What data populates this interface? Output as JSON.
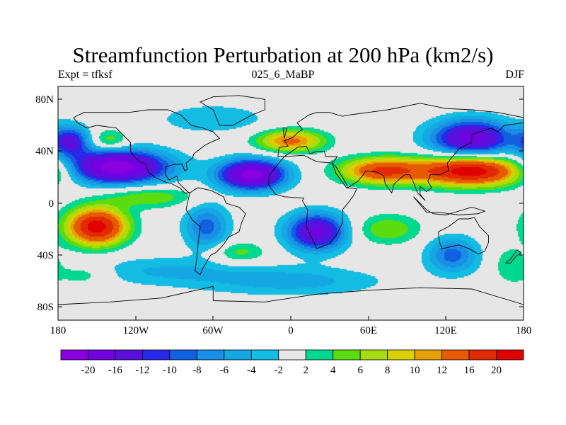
{
  "title": "Streamfunction Perturbation at 200 hPa (km2/s)",
  "subtitle": {
    "left": "Expt = tfksf",
    "center": "025_6_MaBP",
    "right": "DJF"
  },
  "axes": {
    "y_ticks": [
      "80N",
      "40N",
      "0",
      "40S",
      "80S"
    ],
    "x_ticks": [
      "180",
      "120W",
      "60W",
      "0",
      "60E",
      "120E",
      "180"
    ]
  },
  "colorbar": {
    "labels": [
      "-20",
      "-16",
      "-12",
      "-10",
      "-8",
      "-6",
      "-4",
      "-2",
      "2",
      "4",
      "6",
      "8",
      "10",
      "12",
      "16",
      "20"
    ],
    "colors": [
      "#8a00e0",
      "#7200e0",
      "#5a10dc",
      "#2828e8",
      "#1060e0",
      "#1a8ee6",
      "#15a6e4",
      "#12bce2",
      "#e6e6e6",
      "#00d890",
      "#5adc10",
      "#a6dc10",
      "#d8d000",
      "#e6a000",
      "#e65a00",
      "#e22a00",
      "#e00000"
    ]
  },
  "chart_data": {
    "type": "heatmap",
    "title": "Streamfunction Perturbation at 200 hPa (km2/s)",
    "x_range": [
      -180,
      180
    ],
    "y_range": [
      -90,
      90
    ],
    "blobs": [
      {
        "lon": -135,
        "lat": 28,
        "amp": -23,
        "slon": 28,
        "slat": 9
      },
      {
        "lon": -30,
        "lat": 22,
        "amp": -22,
        "slon": 18,
        "slat": 8
      },
      {
        "lon": 140,
        "lat": 50,
        "amp": -18,
        "slon": 22,
        "slat": 10
      },
      {
        "lon": 20,
        "lat": -22,
        "amp": -17,
        "slon": 16,
        "slat": 10
      },
      {
        "lon": -65,
        "lat": -18,
        "amp": -9,
        "slon": 12,
        "slat": 12
      },
      {
        "lon": 125,
        "lat": -40,
        "amp": -9,
        "slon": 14,
        "slat": 10
      },
      {
        "lon": -170,
        "lat": 48,
        "amp": -12,
        "slon": 10,
        "slat": 8
      },
      {
        "lon": 0,
        "lat": -60,
        "amp": -5,
        "slon": 50,
        "slat": 8
      },
      {
        "lon": -100,
        "lat": -52,
        "amp": -4,
        "slon": 45,
        "slat": 8
      },
      {
        "lon": -60,
        "lat": 65,
        "amp": -4,
        "slon": 30,
        "slat": 8
      },
      {
        "lon": 140,
        "lat": 25,
        "amp": 23,
        "slon": 30,
        "slat": 8
      },
      {
        "lon": 70,
        "lat": 25,
        "amp": 16,
        "slon": 22,
        "slat": 7
      },
      {
        "lon": -150,
        "lat": -18,
        "amp": 22,
        "slon": 16,
        "slat": 10
      },
      {
        "lon": 0,
        "lat": 48,
        "amp": 13,
        "slon": 18,
        "slat": 6
      },
      {
        "lon": -110,
        "lat": 5,
        "amp": 6,
        "slon": 25,
        "slat": 6
      },
      {
        "lon": -40,
        "lat": -38,
        "amp": 5,
        "slon": 15,
        "slat": 6
      },
      {
        "lon": 75,
        "lat": -20,
        "amp": 6,
        "slon": 18,
        "slat": 8
      },
      {
        "lon": -140,
        "lat": 48,
        "amp": 6,
        "slon": 10,
        "slat": 6
      },
      {
        "lon": -160,
        "lat": -55,
        "amp": 4,
        "slon": 15,
        "slat": 6
      },
      {
        "lon": 170,
        "lat": -48,
        "amp": 4,
        "slon": 10,
        "slat": 10
      }
    ],
    "coastlines": [
      [
        [
          -168,
          66
        ],
        [
          -160,
          70
        ],
        [
          -140,
          70
        ],
        [
          -125,
          70
        ],
        [
          -110,
          72
        ],
        [
          -95,
          72
        ],
        [
          -85,
          68
        ],
        [
          -80,
          63
        ],
        [
          -77,
          60
        ],
        [
          -68,
          58
        ],
        [
          -60,
          55
        ],
        [
          -55,
          50
        ],
        [
          -66,
          45
        ],
        [
          -70,
          42
        ],
        [
          -75,
          38
        ],
        [
          -76,
          35
        ],
        [
          -81,
          31
        ],
        [
          -80,
          26
        ],
        [
          -82,
          25
        ],
        [
          -84,
          30
        ],
        [
          -90,
          30
        ],
        [
          -97,
          28
        ],
        [
          -97,
          22
        ],
        [
          -94,
          18
        ],
        [
          -88,
          21
        ],
        [
          -87,
          16
        ],
        [
          -83,
          12
        ],
        [
          -80,
          9
        ],
        [
          -78,
          8
        ],
        [
          -82,
          8
        ],
        [
          -86,
          12
        ],
        [
          -92,
          15
        ],
        [
          -96,
          16
        ],
        [
          -105,
          20
        ],
        [
          -110,
          24
        ],
        [
          -112,
          30
        ],
        [
          -117,
          32
        ],
        [
          -121,
          36
        ],
        [
          -124,
          40
        ],
        [
          -124,
          47
        ],
        [
          -128,
          51
        ],
        [
          -135,
          58
        ],
        [
          -150,
          60
        ],
        [
          -158,
          58
        ],
        [
          -165,
          62
        ],
        [
          -168,
          66
        ]
      ],
      [
        [
          -78,
          8
        ],
        [
          -72,
          12
        ],
        [
          -62,
          10
        ],
        [
          -52,
          5
        ],
        [
          -50,
          0
        ],
        [
          -40,
          -3
        ],
        [
          -35,
          -8
        ],
        [
          -38,
          -15
        ],
        [
          -40,
          -22
        ],
        [
          -48,
          -26
        ],
        [
          -53,
          -33
        ],
        [
          -58,
          -38
        ],
        [
          -62,
          -40
        ],
        [
          -65,
          -45
        ],
        [
          -68,
          -50
        ],
        [
          -70,
          -55
        ],
        [
          -74,
          -52
        ],
        [
          -73,
          -45
        ],
        [
          -72,
          -35
        ],
        [
          -71,
          -25
        ],
        [
          -70,
          -18
        ],
        [
          -76,
          -13
        ],
        [
          -81,
          -5
        ],
        [
          -80,
          0
        ],
        [
          -78,
          8
        ]
      ],
      [
        [
          -55,
          60
        ],
        [
          -45,
          60
        ],
        [
          -30,
          68
        ],
        [
          -20,
          72
        ],
        [
          -20,
          80
        ],
        [
          -40,
          83
        ],
        [
          -60,
          82
        ],
        [
          -70,
          78
        ],
        [
          -60,
          72
        ],
        [
          -55,
          60
        ]
      ],
      [
        [
          -10,
          36
        ],
        [
          -9,
          43
        ],
        [
          -2,
          44
        ],
        [
          -5,
          48
        ],
        [
          2,
          51
        ],
        [
          5,
          54
        ],
        [
          9,
          57
        ],
        [
          5,
          62
        ],
        [
          14,
          68
        ],
        [
          20,
          70
        ],
        [
          30,
          70
        ],
        [
          40,
          67
        ],
        [
          45,
          68
        ],
        [
          60,
          70
        ],
        [
          75,
          72
        ],
        [
          100,
          77
        ],
        [
          120,
          73
        ],
        [
          140,
          72
        ],
        [
          160,
          70
        ],
        [
          170,
          68
        ],
        [
          180,
          66
        ],
        [
          180,
          62
        ],
        [
          165,
          60
        ],
        [
          160,
          55
        ],
        [
          155,
          58
        ],
        [
          140,
          53
        ],
        [
          140,
          47
        ],
        [
          130,
          42
        ],
        [
          126,
          37
        ],
        [
          121,
          31
        ],
        [
          122,
          25
        ],
        [
          115,
          22
        ],
        [
          108,
          22
        ],
        [
          106,
          17
        ],
        [
          109,
          12
        ],
        [
          105,
          9
        ],
        [
          100,
          13
        ],
        [
          100,
          7
        ],
        [
          104,
          2
        ],
        [
          98,
          8
        ],
        [
          95,
          16
        ],
        [
          92,
          22
        ],
        [
          88,
          22
        ],
        [
          80,
          15
        ],
        [
          78,
          8
        ],
        [
          73,
          15
        ],
        [
          72,
          21
        ],
        [
          67,
          24
        ],
        [
          58,
          25
        ],
        [
          56,
          22
        ],
        [
          52,
          17
        ],
        [
          44,
          12
        ],
        [
          43,
          15
        ],
        [
          40,
          20
        ],
        [
          35,
          28
        ],
        [
          32,
          31
        ],
        [
          36,
          36
        ],
        [
          27,
          36
        ],
        [
          26,
          40
        ],
        [
          20,
          40
        ],
        [
          15,
          38
        ],
        [
          12,
          44
        ],
        [
          5,
          43
        ],
        [
          -5,
          36
        ],
        [
          -10,
          36
        ]
      ],
      [
        [
          -17,
          21
        ],
        [
          -10,
          30
        ],
        [
          -5,
          36
        ],
        [
          10,
          37
        ],
        [
          20,
          32
        ],
        [
          32,
          31
        ],
        [
          35,
          23
        ],
        [
          43,
          12
        ],
        [
          51,
          11
        ],
        [
          48,
          5
        ],
        [
          40,
          -5
        ],
        [
          40,
          -15
        ],
        [
          35,
          -25
        ],
        [
          30,
          -31
        ],
        [
          20,
          -35
        ],
        [
          18,
          -30
        ],
        [
          12,
          -18
        ],
        [
          13,
          -5
        ],
        [
          9,
          2
        ],
        [
          10,
          4
        ],
        [
          -5,
          5
        ],
        [
          -12,
          7
        ],
        [
          -17,
          14
        ],
        [
          -17,
          21
        ]
      ],
      [
        [
          114,
          -22
        ],
        [
          122,
          -18
        ],
        [
          130,
          -12
        ],
        [
          137,
          -12
        ],
        [
          142,
          -11
        ],
        [
          146,
          -18
        ],
        [
          153,
          -25
        ],
        [
          153,
          -30
        ],
        [
          150,
          -37
        ],
        [
          145,
          -39
        ],
        [
          138,
          -35
        ],
        [
          130,
          -32
        ],
        [
          117,
          -35
        ],
        [
          115,
          -30
        ],
        [
          114,
          -22
        ]
      ],
      [
        [
          95,
          5
        ],
        [
          105,
          -5
        ],
        [
          110,
          -8
        ],
        [
          120,
          -9
        ],
        [
          130,
          -6
        ],
        [
          140,
          -3
        ],
        [
          150,
          -6
        ],
        [
          145,
          -8
        ],
        [
          130,
          -9
        ],
        [
          115,
          -7
        ],
        [
          105,
          -7
        ],
        [
          95,
          5
        ]
      ],
      [
        [
          -180,
          -78
        ],
        [
          -140,
          -76
        ],
        [
          -100,
          -73
        ],
        [
          -60,
          -64
        ],
        [
          -60,
          -75
        ],
        [
          -20,
          -76
        ],
        [
          20,
          -70
        ],
        [
          60,
          -67
        ],
        [
          100,
          -65
        ],
        [
          140,
          -66
        ],
        [
          180,
          -78
        ]
      ],
      [
        [
          166,
          -46
        ],
        [
          170,
          -46
        ],
        [
          174,
          -41
        ],
        [
          178,
          -38
        ],
        [
          175,
          -36
        ],
        [
          170,
          -43
        ],
        [
          166,
          -46
        ]
      ],
      [
        [
          -5,
          50
        ],
        [
          -3,
          58
        ],
        [
          -6,
          58
        ],
        [
          -5,
          50
        ]
      ]
    ]
  }
}
